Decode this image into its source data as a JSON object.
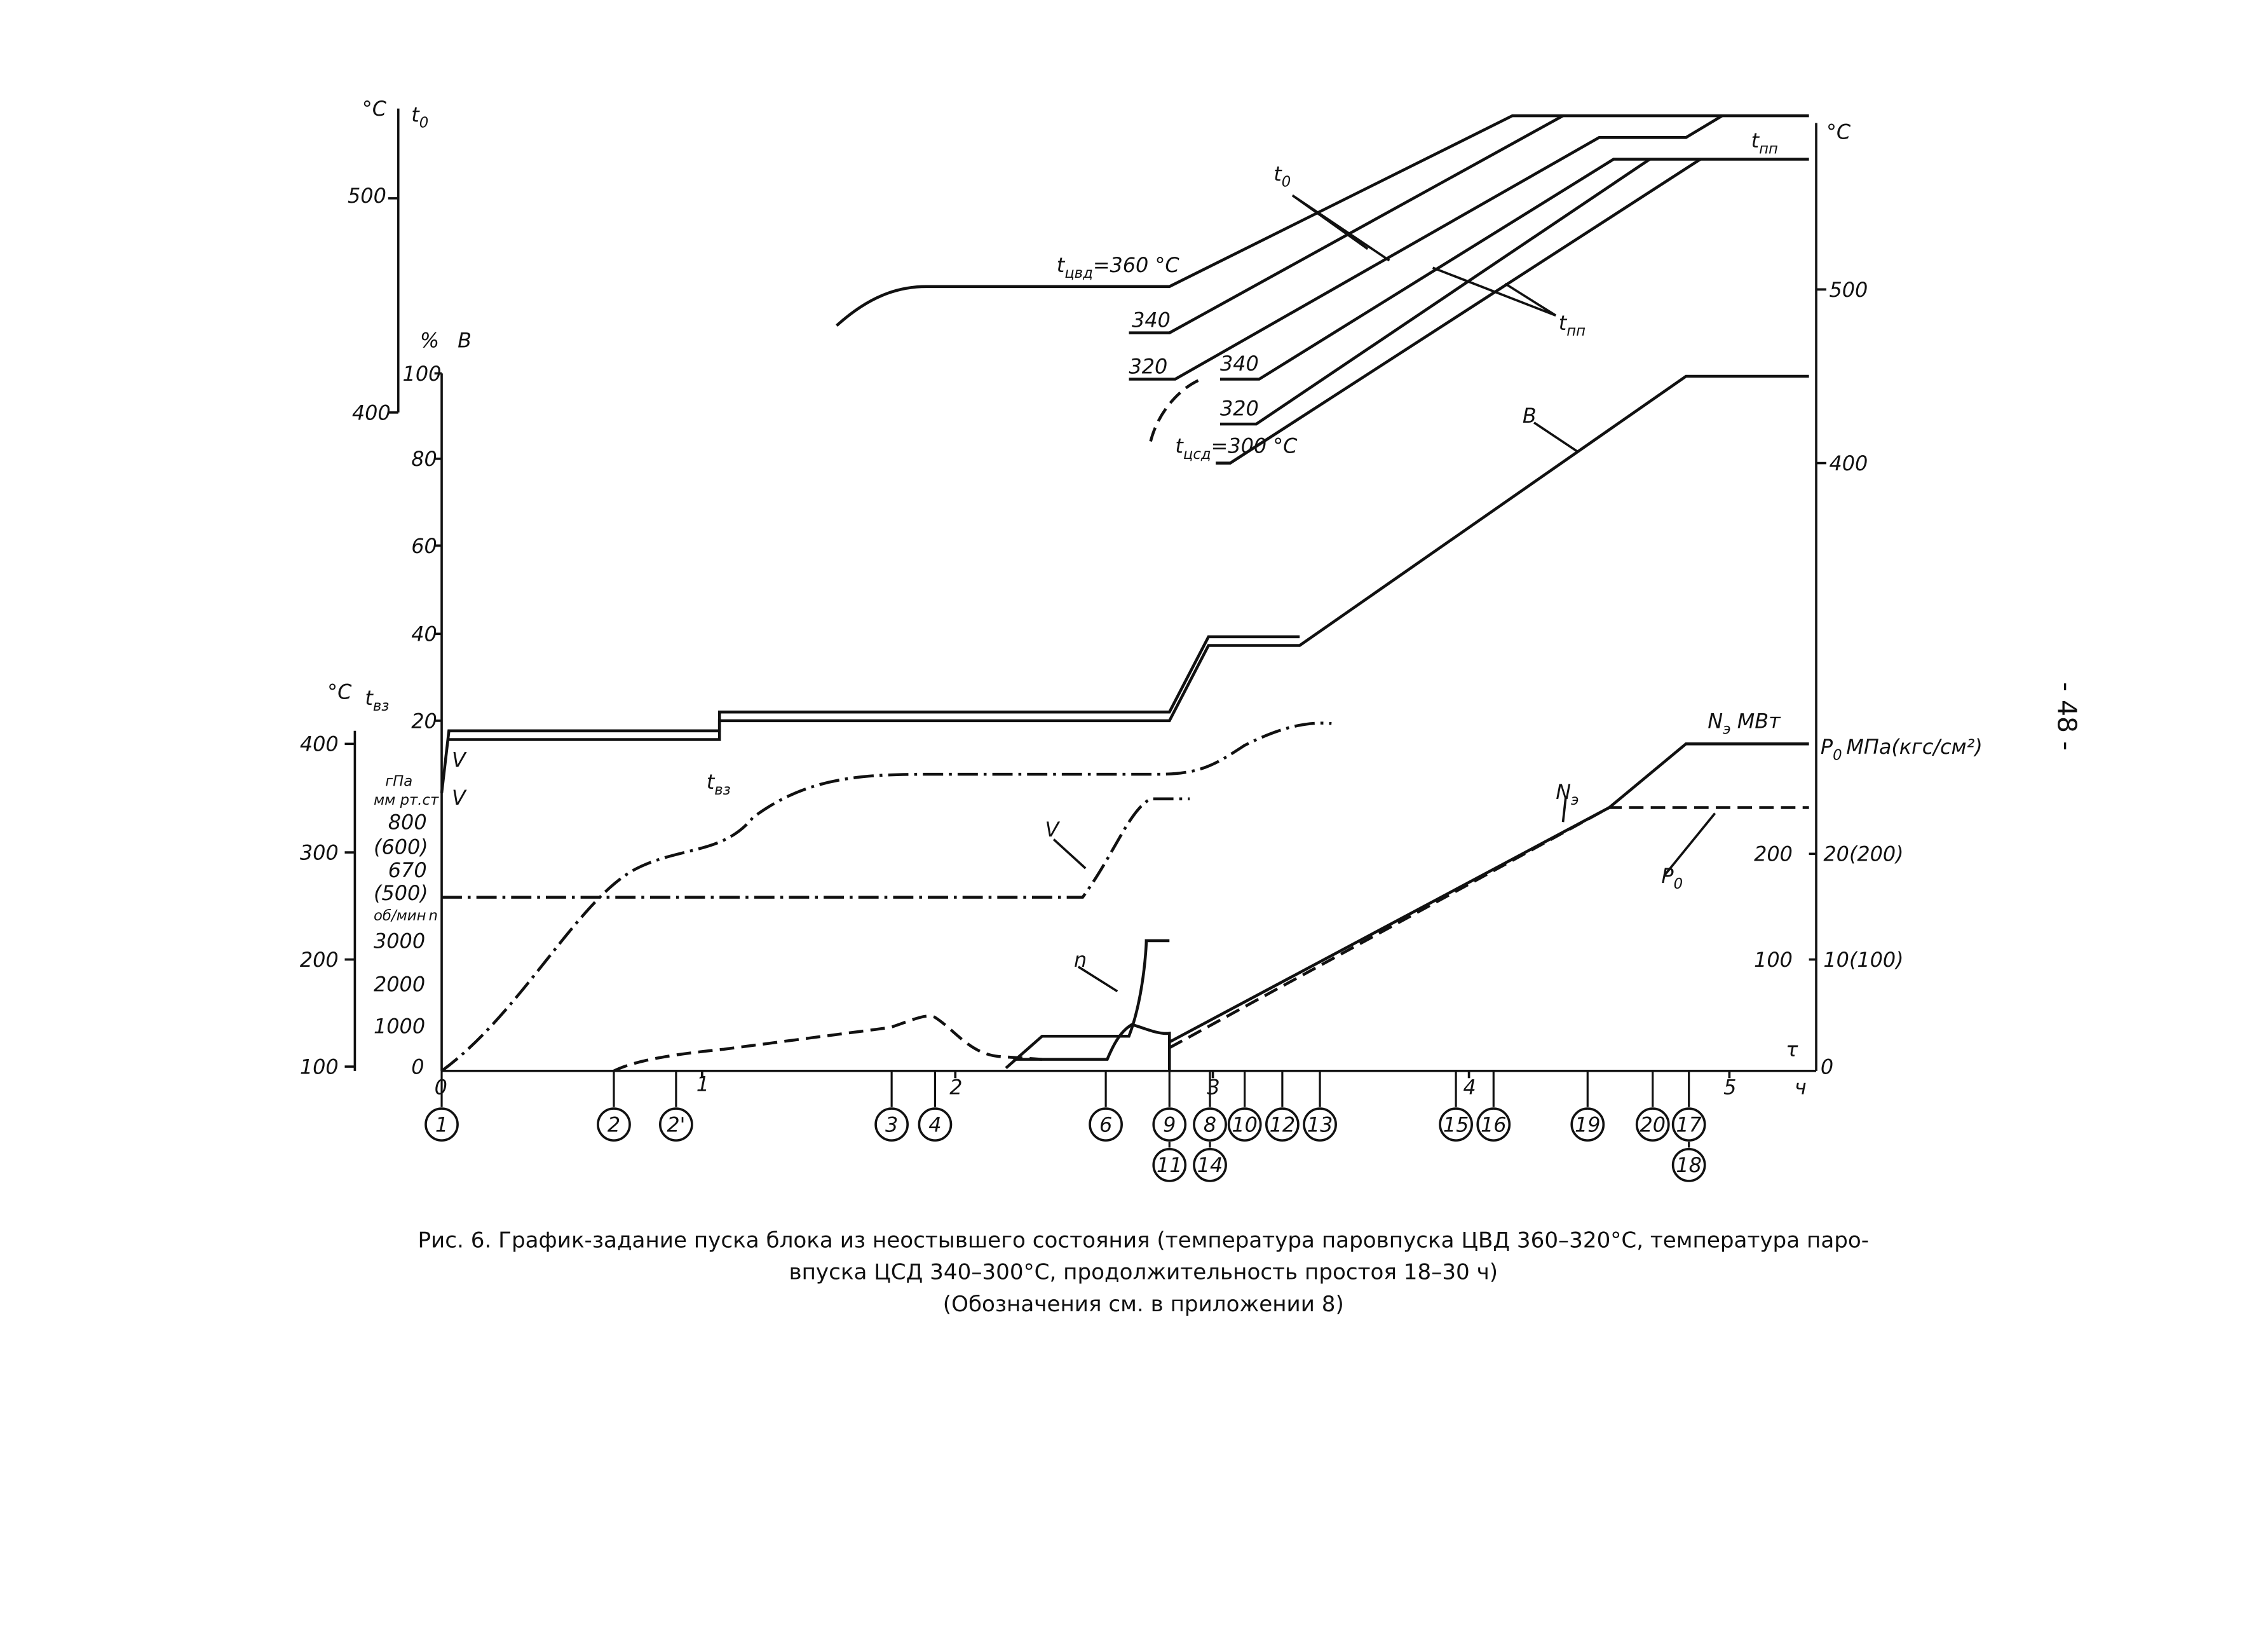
{
  "left_axes": {
    "t0": {
      "unit": "°C",
      "symbol": "t",
      "sub": "0",
      "ticks": [
        "500",
        "400"
      ]
    },
    "B": {
      "unit": "%",
      "symbol": "B",
      "ticks": [
        "100",
        "80",
        "60",
        "40",
        "20"
      ]
    },
    "tvz": {
      "unit": "°C",
      "symbol": "t",
      "sub": "вз",
      "ticks": [
        "400",
        "300",
        "200",
        "100"
      ]
    },
    "pressure": {
      "unit": "гПа",
      "unit2": "мм рт.ст",
      "symbol": "V",
      "ticks": [
        "800",
        "(600)",
        "670",
        "(500)"
      ]
    },
    "speed": {
      "unit": "об/мин",
      "symbol": "n",
      "ticks": [
        "3000",
        "2000",
        "1000",
        "0"
      ]
    }
  },
  "time_axis": {
    "symbol": "τ",
    "unit": "ч",
    "ticks": [
      "0",
      "1",
      "2",
      "3",
      "4",
      "5"
    ]
  },
  "right_axes": {
    "temp": {
      "unit": "°C",
      "ticks": [
        "500",
        "400"
      ]
    },
    "power": {
      "ticks": [
        "200",
        "100",
        "0"
      ]
    },
    "p0": {
      "symbol": "P",
      "sub": "0",
      "unit": "МПа(кгс/см²)",
      "ticks": [
        "20(200)",
        "10(100)"
      ]
    }
  },
  "curve_labels": {
    "t0_leader": {
      "symbol": "t",
      "sub": "0"
    },
    "tpp_leader": {
      "symbol": "t",
      "sub": "пп"
    },
    "tpp_top": {
      "symbol": "t",
      "sub": "пп"
    },
    "tcvd": {
      "symbol": "t",
      "sub": "цвд",
      "text": "=360 °C"
    },
    "t0_340": "340",
    "t0_320": "320",
    "tpp_340": "340",
    "tpp_320": "320",
    "tcsd": {
      "symbol": "t",
      "sub": "цсд",
      "text": "=300 °C"
    },
    "B": "B",
    "tvz": {
      "symbol": "t",
      "sub": "вз"
    },
    "V_mid": "V",
    "V_left": "V",
    "n": "n",
    "N_power": {
      "symbol": "N",
      "sub": "э",
      "text": " МВт"
    },
    "N": {
      "symbol": "N",
      "sub": "э"
    },
    "P0": {
      "symbol": "P",
      "sub": "0"
    }
  },
  "events": {
    "row1": [
      "1",
      "2",
      "2'",
      "3",
      "4",
      "6",
      "9",
      "8",
      "10",
      "12",
      "13",
      "15",
      "16",
      "19",
      "20",
      "17"
    ],
    "row2": [
      "11",
      "14",
      "18"
    ]
  },
  "caption": [
    "Рис. 6. График-задание пуска блока из неостывшего состояния (температура паровпуска ЦВД 360–320°С, температура паро-",
    "впуска ЦСД 340–300°С, продолжительность простоя 18–30 ч)",
    "(Обозначения см. в приложении 8)"
  ],
  "page_number": "- 48 -"
}
